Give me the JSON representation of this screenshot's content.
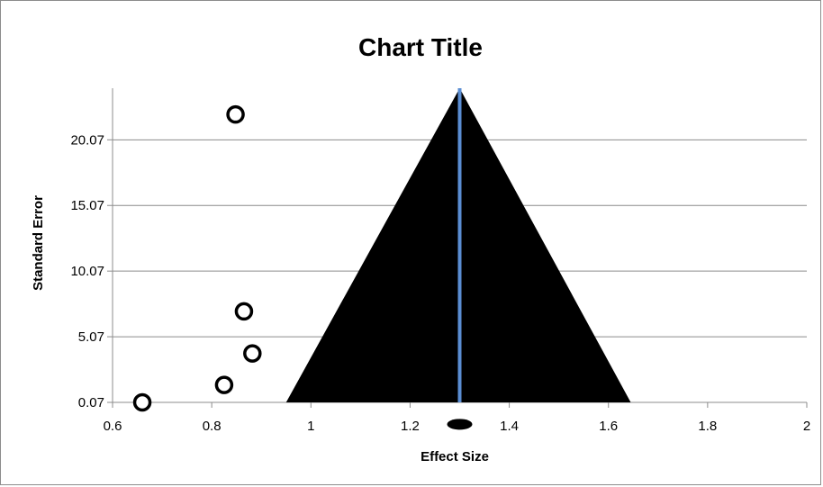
{
  "chart_data": {
    "type": "scatter",
    "title": "Chart Title",
    "xlabel": "Effect Size",
    "ylabel": "Standard Error",
    "xlim": [
      0.6,
      2
    ],
    "ylim": [
      0.07,
      24
    ],
    "x_ticks": [
      "0.6",
      "0.8",
      "1",
      "1.2",
      "1.4",
      "1.6",
      "1.8",
      "2"
    ],
    "x_tick_values": [
      0.6,
      0.8,
      1.0,
      1.2,
      1.4,
      1.6,
      1.8,
      2.0
    ],
    "y_ticks": [
      "0.07",
      "5.07",
      "10.07",
      "15.07",
      "20.07"
    ],
    "y_tick_values": [
      0.07,
      5.07,
      10.07,
      15.07,
      20.07
    ],
    "horizontal_grid": true,
    "legend": "none",
    "points": [
      {
        "x": 0.66,
        "y": 0.07
      },
      {
        "x": 0.825,
        "y": 1.4
      },
      {
        "x": 0.882,
        "y": 3.8
      },
      {
        "x": 0.865,
        "y": 7.0
      },
      {
        "x": 0.848,
        "y": 22.0
      }
    ],
    "funnel": {
      "apex": [
        1.3,
        24.0
      ],
      "base_left": [
        0.95,
        0.07
      ],
      "base_right": [
        1.645,
        0.07
      ],
      "color": "#000000"
    },
    "pooled_line": {
      "x": 1.3,
      "y_from": 0.07,
      "y_to": 24.0,
      "color": "#5b8ed3"
    },
    "pooled_marker": {
      "x": 1.3,
      "y": -1.6,
      "color": "#000000"
    }
  }
}
